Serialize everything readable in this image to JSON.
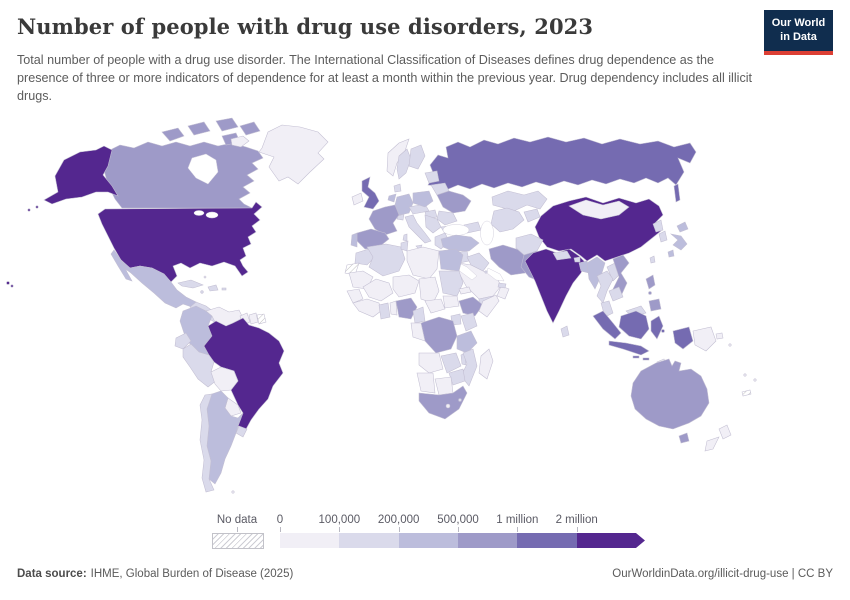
{
  "header": {
    "title": "Number of people with drug use disorders, 2023",
    "subtitle": "Total number of people with a drug use disorder. The International Classification of Diseases defines drug dependence as the presence of three or more indicators of dependence for at least a month within the previous year. Drug dependency includes all illicit drugs."
  },
  "logo": {
    "line1": "Our World",
    "line2": "in Data",
    "bg_color": "#102d4e",
    "stripe_color": "#dc3f34"
  },
  "legend": {
    "no_data_label": "No data",
    "tick_labels": [
      "0",
      "100,000",
      "200,000",
      "500,000",
      "1 million",
      "2 million"
    ],
    "bin_colors": [
      "#f1eff6",
      "#dadaeb",
      "#bcbddc",
      "#9e9ac8",
      "#756bb1",
      "#54278f"
    ]
  },
  "footer": {
    "data_source_label": "Data source:",
    "data_source_value": "IHME, Global Burden of Disease (2025)",
    "attribution": "OurWorldinData.org/illicit-drug-use | CC BY"
  },
  "chart_data": {
    "type": "heatmap",
    "subtype": "choropleth-world-map",
    "title": "Number of people with drug use disorders, 2023",
    "unit": "people",
    "year": 2023,
    "legend_position": "bottom",
    "bin_labels": [
      "0–100,000",
      "100,000–200,000",
      "200,000–500,000",
      "500,000–1 million",
      "1–2 million",
      "2+ million",
      "No data"
    ],
    "notes": "Country fills encode binned totals; bin index 0-5 maps to legend colors, null = no data"
  },
  "map": {
    "ocean_color": "#ffffff",
    "border_color": "#c2bed2",
    "countries": {
      "usa": 5,
      "brazil": 5,
      "china": 5,
      "india": 5,
      "russia": 4,
      "uk": 4,
      "indonesia": 4,
      "canada": 3,
      "australia": 3,
      "france": 3,
      "spain": 3,
      "ukraine": 3,
      "iran": 3,
      "pakistan": 3,
      "nigeria": 3,
      "ethiopia": 3,
      "drc": 3,
      "south-africa": 3,
      "vietnam": 3,
      "philippines": 3,
      "mexico": 2,
      "colombia": 2,
      "argentina": 2,
      "germany": 2,
      "poland": 2,
      "turkey": 2,
      "egypt": 2,
      "tanzania": 2,
      "myanmar": 2,
      "japan": 2,
      "bangladesh": 2,
      "portugal": 2,
      "netherlands": 2,
      "chile": 1,
      "peru": 1,
      "ecuador": 1,
      "uruguay": 1,
      "cuba": 1,
      "hispaniola": 1,
      "jamaica": 1,
      "puerto-rico": 1,
      "central-america": 1,
      "italy": 1,
      "sweden": 1,
      "finland": 1,
      "denmark": 1,
      "baltics": 1,
      "belarus": 1,
      "romania": 1,
      "balkans": 1,
      "bulgaria": 1,
      "greece": 1,
      "austria-czech": 1,
      "hungary": 1,
      "switzerland": 1,
      "kazakhstan": 1,
      "uzbek-turkmen": 1,
      "kyrgyz-tajik": 1,
      "caucasus": 1,
      "iraq": 1,
      "syria": 1,
      "israel-jordan": 1,
      "yemen": 1,
      "uae": 1,
      "kuwait": 1,
      "cyprus": 1,
      "morocco": 1,
      "algeria": 1,
      "tunisia": 1,
      "sudan": 1,
      "ghana": 1,
      "cameroon": 1,
      "kenya": 1,
      "uganda": 1,
      "zambia": 1,
      "malawi": 1,
      "mozambique": 1,
      "zimbabwe": 1,
      "swaziland": 1,
      "afghanistan": 1,
      "nepal": 1,
      "bhutan": 1,
      "sri-lanka": 1,
      "thailand": 1,
      "laos": 1,
      "cambodia": 1,
      "malaysia": 1,
      "north-korea": 1,
      "south-korea": 1,
      "taiwan": 1,
      "greenland": 0,
      "iceland": 0,
      "ireland": 0,
      "norway": 0,
      "venezuela": 0,
      "bolivia": 0,
      "paraguay": 0,
      "guyana": 0,
      "suriname": 0,
      "bahamas": 0,
      "falklands": 0,
      "libya": 0,
      "mauritania": 0,
      "mali": 0,
      "niger": 0,
      "chad": 0,
      "senegal-guinea": 0,
      "west-africa-coast": 0,
      "benin-togo": 0,
      "car": 0,
      "south-sudan": 0,
      "eritrea": 0,
      "somalia": 0,
      "gabon-congo": 0,
      "angola": 0,
      "namibia": 0,
      "botswana": 0,
      "madagascar": 0,
      "lesotho": 0,
      "saudi": 0,
      "oman": 0,
      "mongolia": 0,
      "png": 0,
      "new-zealand": 0,
      "timor": 0,
      "solomon": 0,
      "pacific-islands": 0,
      "western-sahara": null,
      "french-guiana": null,
      "new-caledonia": null
    }
  }
}
